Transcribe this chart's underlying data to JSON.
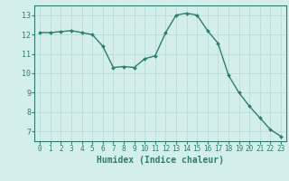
{
  "x": [
    0,
    1,
    2,
    3,
    4,
    5,
    6,
    7,
    8,
    9,
    10,
    11,
    12,
    13,
    14,
    15,
    16,
    17,
    18,
    19,
    20,
    21,
    22,
    23
  ],
  "y": [
    12.1,
    12.1,
    12.15,
    12.2,
    12.1,
    12.0,
    11.4,
    10.3,
    10.35,
    10.3,
    10.75,
    10.9,
    12.1,
    13.0,
    13.1,
    13.0,
    12.2,
    11.55,
    9.9,
    9.0,
    8.3,
    7.7,
    7.1,
    6.75
  ],
  "line_color": "#2e7d6e",
  "marker": "D",
  "marker_size": 2.0,
  "linewidth": 1.0,
  "bg_color": "#d4efe9",
  "grid_color": "#b8ddd7",
  "xlabel": "Humidex (Indice chaleur)",
  "xlabel_fontsize": 7,
  "xlim": [
    -0.5,
    23.5
  ],
  "ylim": [
    6.5,
    13.5
  ],
  "yticks": [
    7,
    8,
    9,
    10,
    11,
    12,
    13
  ],
  "xticks": [
    0,
    1,
    2,
    3,
    4,
    5,
    6,
    7,
    8,
    9,
    10,
    11,
    12,
    13,
    14,
    15,
    16,
    17,
    18,
    19,
    20,
    21,
    22,
    23
  ],
  "tick_fontsize": 5.5
}
